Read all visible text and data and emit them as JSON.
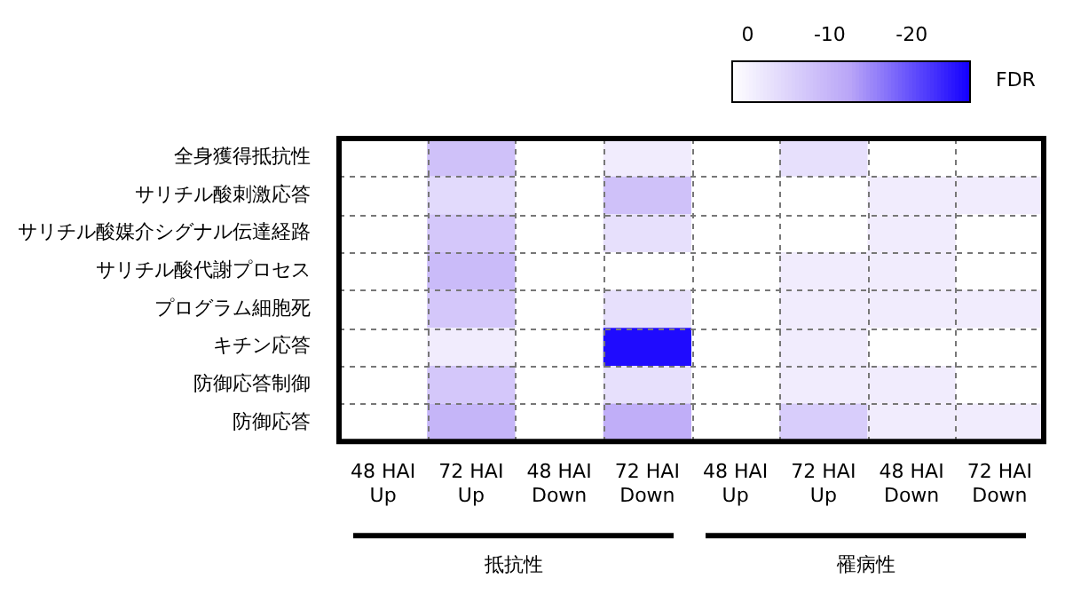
{
  "chart_data": {
    "type": "heatmap",
    "clabel": "FDR",
    "categories": [
      "48 HAI Up",
      "72 HAI Up",
      "48 HAI Down",
      "72 HAI Down",
      "48 HAI Up",
      "72 HAI Up",
      "48 HAI Down",
      "72 HAI Down"
    ],
    "y_categories": [
      "全身獲得抵抗性",
      "サリチル酸刺激応答",
      "サリチル酸媒介シグナル伝達経路",
      "サリチル酸代謝プロセス",
      "プログラム細胞死",
      "キチン応答",
      "防御応答制御",
      "防御応答"
    ],
    "cells": [
      [
        null,
        -8,
        null,
        -1,
        null,
        -3,
        null,
        null
      ],
      [
        null,
        -4,
        null,
        -8,
        null,
        null,
        -1,
        -1
      ],
      [
        null,
        -7,
        null,
        -3,
        null,
        null,
        -1,
        null
      ],
      [
        null,
        -9,
        null,
        null,
        null,
        -1,
        -1,
        null
      ],
      [
        null,
        -7,
        null,
        -3,
        null,
        -1,
        -1,
        -1
      ],
      [
        null,
        -1,
        null,
        -26,
        null,
        -1,
        null,
        null
      ],
      [
        null,
        -7,
        null,
        -3,
        null,
        -1,
        -1,
        null
      ],
      [
        null,
        -10,
        null,
        -11,
        null,
        -6,
        -1,
        -1
      ]
    ],
    "clim": [
      2,
      -27
    ],
    "cticks": [
      0,
      -10,
      -20
    ],
    "annotations": [
      "抵抗性",
      "罹病性"
    ]
  }
}
